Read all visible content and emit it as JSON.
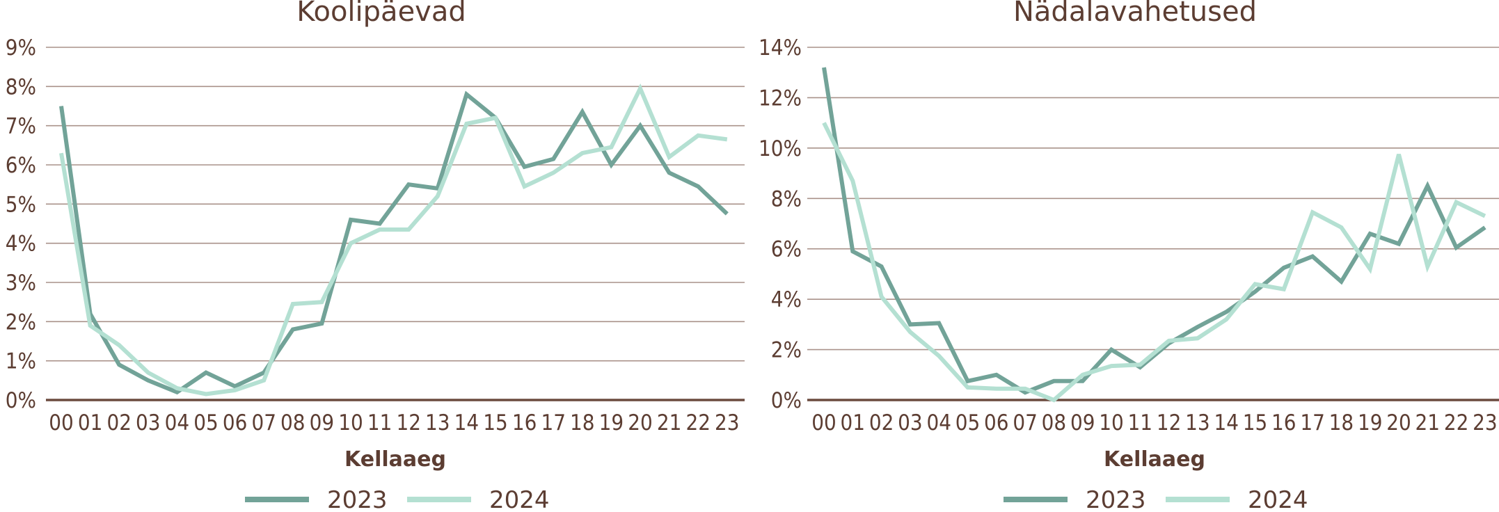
{
  "colors": {
    "series_2023": "#72a398",
    "series_2024": "#b4e0d2",
    "text": "#5c3d32"
  },
  "chart_data": [
    {
      "type": "line",
      "title": "Koolipäevad",
      "xlabel": "Kellaaeg",
      "ylabel": "",
      "categories": [
        "00",
        "01",
        "02",
        "03",
        "04",
        "05",
        "06",
        "07",
        "08",
        "09",
        "10",
        "11",
        "12",
        "13",
        "14",
        "15",
        "16",
        "17",
        "18",
        "19",
        "20",
        "21",
        "22",
        "23"
      ],
      "ylim": [
        0,
        9
      ],
      "yticks": [
        0,
        1,
        2,
        3,
        4,
        5,
        6,
        7,
        8,
        9
      ],
      "ytick_labels": [
        "0%",
        "1%",
        "2%",
        "3%",
        "4%",
        "5%",
        "6%",
        "7%",
        "8%",
        "9%"
      ],
      "series": [
        {
          "name": "2023",
          "values": [
            7.5,
            2.2,
            0.9,
            0.5,
            0.2,
            0.7,
            0.35,
            0.7,
            1.8,
            1.95,
            4.6,
            4.5,
            5.5,
            5.4,
            7.8,
            7.2,
            5.95,
            6.15,
            7.35,
            6.0,
            7.0,
            5.8,
            5.45,
            4.75
          ]
        },
        {
          "name": "2024",
          "values": [
            6.3,
            1.9,
            1.4,
            0.7,
            0.3,
            0.15,
            0.25,
            0.5,
            2.45,
            2.5,
            4.0,
            4.35,
            4.35,
            5.2,
            7.05,
            7.2,
            5.45,
            5.8,
            6.3,
            6.45,
            7.95,
            6.2,
            6.75,
            6.65
          ]
        }
      ],
      "legend": [
        "2023",
        "2024"
      ]
    },
    {
      "type": "line",
      "title": "Nädalavahetused",
      "xlabel": "Kellaaeg",
      "ylabel": "",
      "categories": [
        "00",
        "01",
        "02",
        "03",
        "04",
        "05",
        "06",
        "07",
        "08",
        "09",
        "10",
        "11",
        "12",
        "13",
        "14",
        "15",
        "16",
        "17",
        "18",
        "19",
        "20",
        "21",
        "22",
        "23"
      ],
      "ylim": [
        0,
        14
      ],
      "yticks": [
        0,
        2,
        4,
        6,
        8,
        10,
        12,
        14
      ],
      "ytick_labels": [
        "0%",
        "2%",
        "4%",
        "6%",
        "8%",
        "10%",
        "12%",
        "14%"
      ],
      "series": [
        {
          "name": "2023",
          "values": [
            13.2,
            5.9,
            5.3,
            3.0,
            3.05,
            0.75,
            1.0,
            0.3,
            0.75,
            0.75,
            2.0,
            1.3,
            2.25,
            2.9,
            3.5,
            4.3,
            5.25,
            5.7,
            4.7,
            6.6,
            6.2,
            8.5,
            6.05,
            6.85
          ]
        },
        {
          "name": "2024",
          "values": [
            11.0,
            8.7,
            4.1,
            2.7,
            1.75,
            0.5,
            0.45,
            0.45,
            0.0,
            1.0,
            1.35,
            1.4,
            2.35,
            2.45,
            3.2,
            4.6,
            4.4,
            7.45,
            6.85,
            5.2,
            9.75,
            5.3,
            7.85,
            7.3
          ]
        }
      ],
      "legend": [
        "2023",
        "2024"
      ]
    }
  ]
}
